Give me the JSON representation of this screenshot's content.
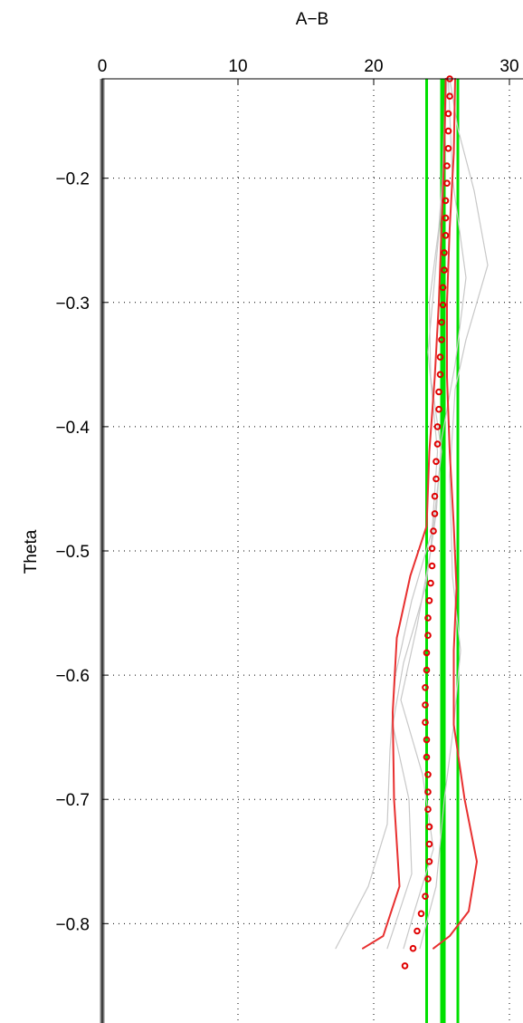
{
  "chart_data": {
    "type": "line",
    "title": "A−B",
    "xlabel": "",
    "ylabel": "Theta",
    "xlim": [
      0,
      31
    ],
    "ylim": [
      -0.88,
      -0.12
    ],
    "x_axis_location": "top",
    "x_ticks": [
      0,
      10,
      20,
      30
    ],
    "x_tick_labels": [
      "0",
      "10",
      "20",
      "30"
    ],
    "y_ticks": [
      -0.2,
      -0.3,
      -0.4,
      -0.5,
      -0.6,
      -0.7,
      -0.8
    ],
    "y_tick_labels": [
      "−0.2",
      "−0.3",
      "−0.4",
      "−0.5",
      "−0.6",
      "−0.7",
      "−0.8"
    ],
    "grid": true,
    "legend": "none",
    "colors": {
      "markers": "#e00000",
      "red_lines": "#e83030",
      "green_lines": "#00e000",
      "gray_lines": "#c8c8c8",
      "zero_line": "#808080"
    },
    "series": [
      {
        "kind": "vertical_lines",
        "x": [
          0
        ],
        "color": "#808080"
      },
      {
        "kind": "vertical_lines",
        "x": [
          23.9,
          25.0,
          25.2,
          26.2
        ],
        "color": "#00e000"
      },
      {
        "kind": "line",
        "color": "#c8c8c8",
        "points": [
          [
            25.6,
            -0.12
          ],
          [
            26.2,
            -0.16
          ],
          [
            27.4,
            -0.21
          ],
          [
            28.4,
            -0.27
          ],
          [
            26.8,
            -0.33
          ],
          [
            26.0,
            -0.37
          ],
          [
            25.6,
            -0.44
          ],
          [
            25.8,
            -0.52
          ],
          [
            26.4,
            -0.58
          ],
          [
            25.9,
            -0.64
          ],
          [
            25.2,
            -0.7
          ],
          [
            24.6,
            -0.77
          ],
          [
            23.4,
            -0.82
          ]
        ]
      },
      {
        "kind": "line",
        "color": "#c8c8c8",
        "points": [
          [
            25.4,
            -0.12
          ],
          [
            25.2,
            -0.18
          ],
          [
            24.8,
            -0.24
          ],
          [
            24.1,
            -0.3
          ],
          [
            24.2,
            -0.36
          ],
          [
            25.0,
            -0.42
          ],
          [
            24.4,
            -0.48
          ],
          [
            22.8,
            -0.54
          ],
          [
            21.6,
            -0.6
          ],
          [
            21.2,
            -0.66
          ],
          [
            21.0,
            -0.72
          ],
          [
            19.6,
            -0.77
          ],
          [
            17.2,
            -0.82
          ]
        ]
      },
      {
        "kind": "line",
        "color": "#c8c8c8",
        "points": [
          [
            25.5,
            -0.12
          ],
          [
            25.8,
            -0.2
          ],
          [
            26.8,
            -0.28
          ],
          [
            26.0,
            -0.35
          ],
          [
            25.0,
            -0.41
          ],
          [
            24.6,
            -0.47
          ],
          [
            23.8,
            -0.53
          ],
          [
            22.2,
            -0.59
          ],
          [
            21.4,
            -0.64
          ],
          [
            22.6,
            -0.7
          ],
          [
            22.8,
            -0.76
          ],
          [
            21.0,
            -0.82
          ]
        ]
      },
      {
        "kind": "line",
        "color": "#c8c8c8",
        "points": [
          [
            25.3,
            -0.12
          ],
          [
            25.0,
            -0.22
          ],
          [
            24.0,
            -0.34
          ],
          [
            24.7,
            -0.42
          ],
          [
            24.2,
            -0.5
          ],
          [
            23.2,
            -0.56
          ],
          [
            22.0,
            -0.62
          ],
          [
            23.6,
            -0.68
          ],
          [
            24.4,
            -0.74
          ],
          [
            23.0,
            -0.79
          ],
          [
            22.2,
            -0.82
          ]
        ]
      },
      {
        "kind": "line",
        "color": "#e83030",
        "points": [
          [
            25.3,
            -0.12
          ],
          [
            25.2,
            -0.18
          ],
          [
            25.0,
            -0.24
          ],
          [
            24.8,
            -0.3
          ],
          [
            24.5,
            -0.36
          ],
          [
            24.1,
            -0.42
          ],
          [
            23.9,
            -0.48
          ],
          [
            22.7,
            -0.52
          ],
          [
            21.7,
            -0.57
          ],
          [
            21.4,
            -0.63
          ],
          [
            21.5,
            -0.7
          ],
          [
            21.9,
            -0.77
          ],
          [
            20.7,
            -0.81
          ],
          [
            19.2,
            -0.82
          ]
        ]
      },
      {
        "kind": "line",
        "color": "#e83030",
        "points": [
          [
            26.0,
            -0.12
          ],
          [
            25.9,
            -0.18
          ],
          [
            25.6,
            -0.24
          ],
          [
            25.4,
            -0.3
          ],
          [
            25.4,
            -0.36
          ],
          [
            25.6,
            -0.42
          ],
          [
            25.9,
            -0.48
          ],
          [
            26.1,
            -0.53
          ],
          [
            25.9,
            -0.58
          ],
          [
            25.9,
            -0.64
          ],
          [
            26.7,
            -0.7
          ],
          [
            27.6,
            -0.75
          ],
          [
            27.0,
            -0.79
          ],
          [
            25.6,
            -0.81
          ],
          [
            24.4,
            -0.82
          ]
        ]
      },
      {
        "kind": "markers",
        "color": "#e00000",
        "points": [
          [
            25.6,
            -0.12
          ],
          [
            25.6,
            -0.134
          ],
          [
            25.5,
            -0.148
          ],
          [
            25.5,
            -0.162
          ],
          [
            25.5,
            -0.176
          ],
          [
            25.4,
            -0.19
          ],
          [
            25.4,
            -0.204
          ],
          [
            25.3,
            -0.218
          ],
          [
            25.3,
            -0.232
          ],
          [
            25.3,
            -0.246
          ],
          [
            25.2,
            -0.26
          ],
          [
            25.2,
            -0.274
          ],
          [
            25.1,
            -0.288
          ],
          [
            25.1,
            -0.302
          ],
          [
            25.0,
            -0.316
          ],
          [
            25.0,
            -0.33
          ],
          [
            24.9,
            -0.344
          ],
          [
            24.9,
            -0.358
          ],
          [
            24.8,
            -0.372
          ],
          [
            24.8,
            -0.386
          ],
          [
            24.7,
            -0.4
          ],
          [
            24.7,
            -0.414
          ],
          [
            24.6,
            -0.428
          ],
          [
            24.6,
            -0.442
          ],
          [
            24.5,
            -0.456
          ],
          [
            24.5,
            -0.47
          ],
          [
            24.4,
            -0.484
          ],
          [
            24.3,
            -0.498
          ],
          [
            24.3,
            -0.512
          ],
          [
            24.2,
            -0.526
          ],
          [
            24.1,
            -0.54
          ],
          [
            24.0,
            -0.554
          ],
          [
            24.0,
            -0.568
          ],
          [
            23.9,
            -0.582
          ],
          [
            23.9,
            -0.596
          ],
          [
            23.8,
            -0.61
          ],
          [
            23.8,
            -0.624
          ],
          [
            23.8,
            -0.638
          ],
          [
            23.9,
            -0.652
          ],
          [
            23.9,
            -0.666
          ],
          [
            24.0,
            -0.68
          ],
          [
            24.0,
            -0.694
          ],
          [
            24.0,
            -0.708
          ],
          [
            24.1,
            -0.722
          ],
          [
            24.1,
            -0.736
          ],
          [
            24.1,
            -0.75
          ],
          [
            24.0,
            -0.764
          ],
          [
            23.8,
            -0.778
          ],
          [
            23.5,
            -0.792
          ],
          [
            23.2,
            -0.806
          ],
          [
            22.9,
            -0.82
          ],
          [
            22.3,
            -0.834
          ]
        ]
      }
    ]
  }
}
